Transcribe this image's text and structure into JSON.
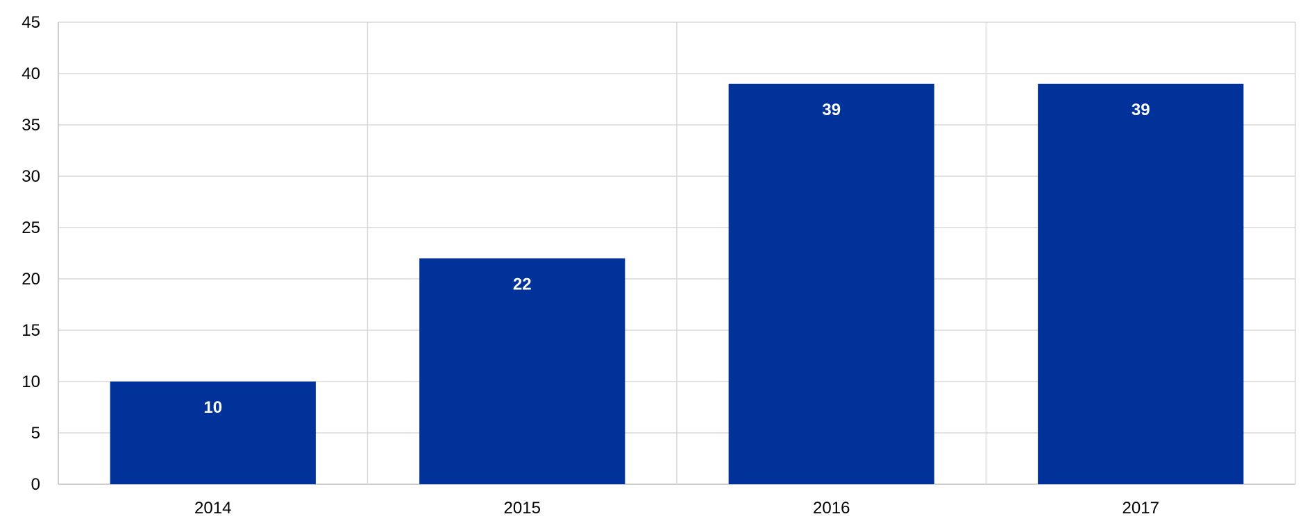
{
  "chart_data": {
    "type": "bar",
    "categories": [
      "2014",
      "2015",
      "2016",
      "2017"
    ],
    "values": [
      10,
      22,
      39,
      39
    ],
    "data_labels": [
      "10",
      "22",
      "39",
      "39"
    ],
    "y_ticks": [
      "0",
      "5",
      "10",
      "15",
      "20",
      "25",
      "30",
      "35",
      "40",
      "45"
    ],
    "ylim": [
      0,
      45
    ],
    "grid": true,
    "title": "",
    "xlabel": "",
    "ylabel": "",
    "colors": {
      "bar": "#003299",
      "grid": "#d9d9d9",
      "axis": "#bfbfbf",
      "data_label": "#ffffff"
    }
  }
}
